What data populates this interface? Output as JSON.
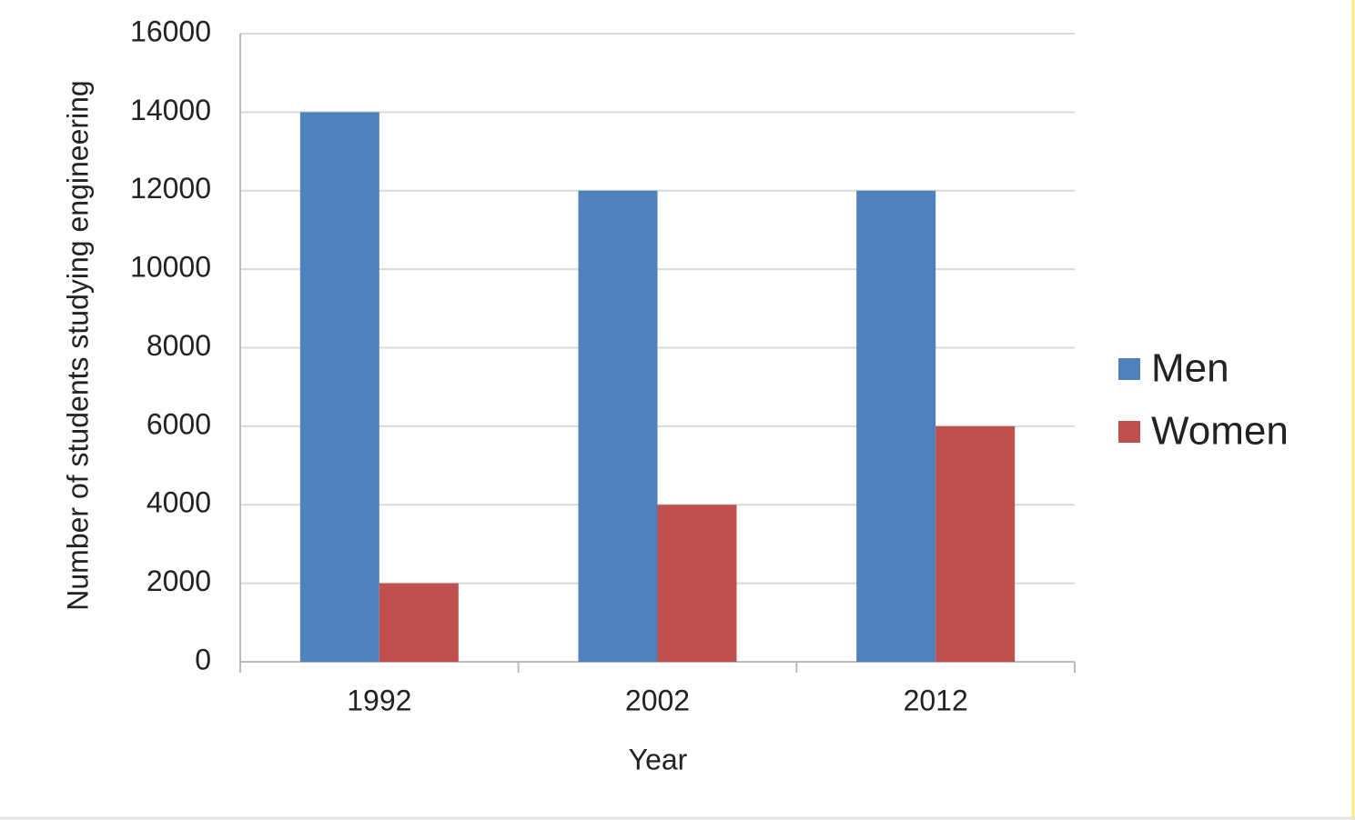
{
  "chart_data": {
    "type": "bar",
    "x_label": "Year",
    "y_label": "Number of students studying engineering",
    "categories": [
      "1992",
      "2002",
      "2012"
    ],
    "series": [
      {
        "name": "Men",
        "color": "#4f81bd",
        "values": [
          14000,
          12000,
          12000
        ]
      },
      {
        "name": "Women",
        "color": "#c0504d",
        "values": [
          2000,
          4000,
          6000
        ]
      }
    ],
    "ylim": [
      0,
      16000
    ],
    "yticks": [
      0,
      2000,
      4000,
      6000,
      8000,
      10000,
      12000,
      14000,
      16000
    ],
    "grid": true,
    "legend": "right"
  }
}
